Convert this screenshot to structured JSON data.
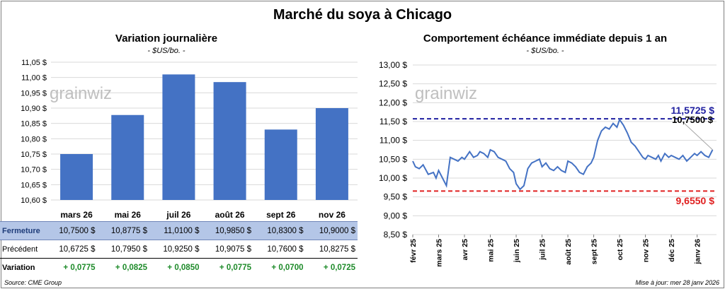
{
  "title": "Marché du soya à Chicago",
  "left": {
    "subtitle": "Variation journalière",
    "unit": "- $US/bo. -",
    "watermark": "grainwiz",
    "bar_color": "#4472c4"
  },
  "right": {
    "subtitle": "Comportement échéance immédiate depuis 1 an",
    "unit": "- $US/bo. -",
    "watermark": "grainwiz",
    "line_color": "#4472c4",
    "high_label": "11,5725 $",
    "high_color": "#1f1fa0",
    "close_label": "10,7500 $",
    "low_label": "9,6550 $",
    "low_color": "#e02020"
  },
  "table": {
    "rows": [
      {
        "label": "Fermeture",
        "cells": [
          "10,7500 $",
          "10,8775 $",
          "11,0100 $",
          "10,9850 $",
          "10,8300 $",
          "10,9000 $"
        ]
      },
      {
        "label": "Précédent",
        "cells": [
          "10,6725 $",
          "10,7950 $",
          "10,9250 $",
          "10,9075 $",
          "10,7600 $",
          "10,8275 $"
        ]
      },
      {
        "label": "Variation",
        "cells": [
          "+ 0,0775",
          "+ 0,0825",
          "+ 0,0850",
          "+ 0,0775",
          "+ 0,0700",
          "+ 0,0725"
        ]
      }
    ]
  },
  "footer": {
    "source": "Source: CME Group",
    "updated": "Mise à jour: mer 28 janv 2026"
  },
  "chart_data": [
    {
      "type": "bar",
      "title": "Variation journalière",
      "ylabel": "$US/bo.",
      "categories": [
        "mars 26",
        "mai 26",
        "juil 26",
        "août 26",
        "sept 26",
        "nov 26"
      ],
      "values": [
        10.75,
        10.8775,
        11.01,
        10.985,
        10.83,
        10.9
      ],
      "ylim": [
        10.6,
        11.05
      ],
      "yticks": [
        "10,60 $",
        "10,65 $",
        "10,70 $",
        "10,75 $",
        "10,80 $",
        "10,85 $",
        "10,90 $",
        "10,95 $",
        "11,00 $",
        "11,05 $"
      ],
      "grid": true
    },
    {
      "type": "line",
      "title": "Comportement échéance immédiate depuis 1 an",
      "ylabel": "$US/bo.",
      "ylim": [
        8.5,
        13.0
      ],
      "yticks": [
        "8,50 $",
        "9,00 $",
        "9,50 $",
        "10,00 $",
        "10,50 $",
        "11,00 $",
        "11,50 $",
        "12,00 $",
        "12,50 $",
        "13,00 $"
      ],
      "xticks": [
        "févr 25",
        "mars 25",
        "avr 25",
        "mai 25",
        "juin 25",
        "juil 25",
        "août 25",
        "sept 25",
        "oct 25",
        "nov 25",
        "déc 25",
        "janv 26"
      ],
      "x": [
        0,
        0.1,
        0.25,
        0.4,
        0.6,
        0.8,
        0.9,
        1.0,
        1.15,
        1.3,
        1.45,
        1.6,
        1.75,
        1.9,
        2.0,
        2.1,
        2.2,
        2.35,
        2.5,
        2.6,
        2.75,
        2.9,
        3.0,
        3.15,
        3.3,
        3.45,
        3.6,
        3.75,
        3.9,
        4.0,
        4.15,
        4.3,
        4.45,
        4.6,
        4.75,
        4.9,
        5.0,
        5.15,
        5.3,
        5.45,
        5.6,
        5.75,
        5.9,
        6.0,
        6.15,
        6.3,
        6.45,
        6.6,
        6.75,
        6.9,
        7.0,
        7.15,
        7.3,
        7.45,
        7.6,
        7.75,
        7.9,
        8.0,
        8.15,
        8.3,
        8.45,
        8.6,
        8.75,
        8.9,
        9.0,
        9.1,
        9.25,
        9.4,
        9.5,
        9.6,
        9.75,
        9.9,
        10.0,
        10.15,
        10.3,
        10.45,
        10.6,
        10.75,
        10.9,
        11.0,
        11.15,
        11.3,
        11.45,
        11.6
      ],
      "series": [
        {
          "values": [
            10.45,
            10.3,
            10.25,
            10.35,
            10.1,
            10.15,
            10.0,
            10.2,
            10.0,
            9.8,
            10.55,
            10.5,
            10.45,
            10.55,
            10.5,
            10.6,
            10.7,
            10.55,
            10.6,
            10.7,
            10.65,
            10.55,
            10.75,
            10.7,
            10.55,
            10.5,
            10.45,
            10.25,
            10.15,
            9.85,
            9.7,
            9.8,
            10.25,
            10.4,
            10.45,
            10.5,
            10.3,
            10.4,
            10.25,
            10.2,
            10.3,
            10.2,
            10.15,
            10.45,
            10.4,
            10.3,
            10.15,
            10.1,
            10.3,
            10.4,
            10.55,
            11.0,
            11.25,
            11.35,
            11.3,
            11.45,
            11.35,
            11.55,
            11.4,
            11.2,
            10.95,
            10.85,
            10.7,
            10.55,
            10.5,
            10.6,
            10.55,
            10.5,
            10.6,
            10.45,
            10.65,
            10.55,
            10.6,
            10.55,
            10.5,
            10.6,
            10.45,
            10.55,
            10.65,
            10.6,
            10.7,
            10.6,
            10.55,
            10.75
          ]
        }
      ],
      "reference_lines": [
        {
          "value": 11.5725,
          "label": "11,5725 $",
          "color": "#1f1fa0"
        },
        {
          "value": 9.655,
          "label": "9,6550 $",
          "color": "#e02020"
        }
      ],
      "last_value_label": "10,7500 $",
      "grid": true
    }
  ]
}
